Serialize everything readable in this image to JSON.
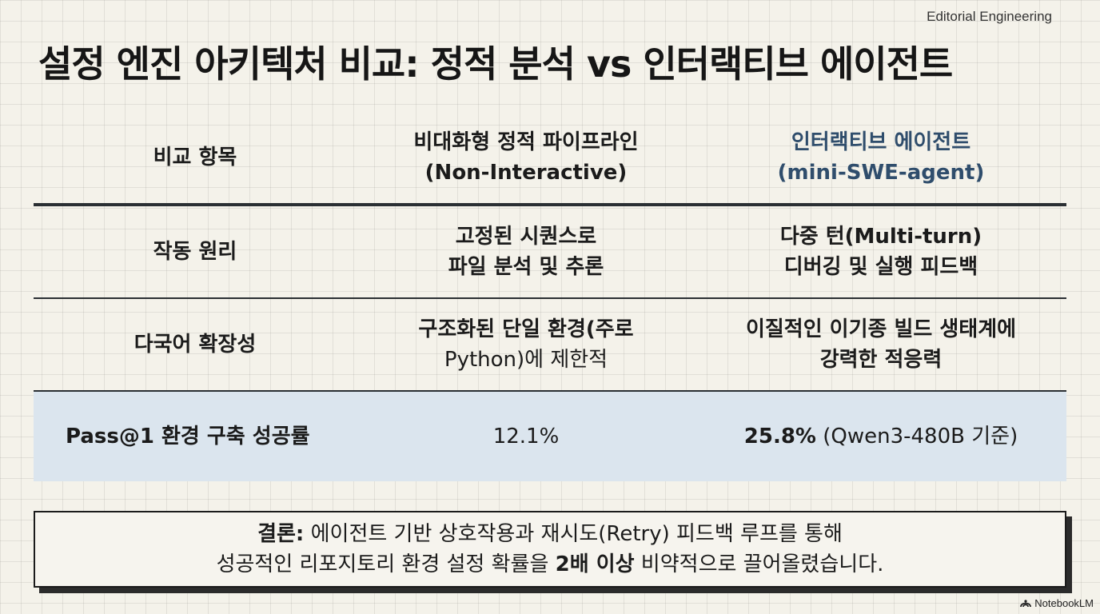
{
  "brand": "Editorial Engineering",
  "title": "설정 엔진 아키텍처 비교: 정적 분석 vs 인터랙티브 에이전트",
  "table": {
    "header": {
      "c1": "비교 항목",
      "c2_line1": "비대화형 정적 파이프라인",
      "c2_line2": "(Non-Interactive)",
      "c3_line1": "인터랙티브 에이전트",
      "c3_line2": "(mini-SWE-agent)"
    },
    "rows": [
      {
        "label": "작동 원리",
        "static_line1": "고정된 시퀀스로",
        "static_line2": "파일 분석 및 추론",
        "agent_line1": "다중 턴(Multi-turn)",
        "agent_line2": "디버깅 및 실행 피드백"
      },
      {
        "label": "다국어 확장성",
        "static_line1": "구조화된 단일 환경(주로",
        "static_line2": "Python)에 제한적",
        "agent_line1": "이질적인 이기종 빌드 생태계에",
        "agent_line2": "강력한 적응력"
      }
    ],
    "pass": {
      "label": "Pass@1 환경 구축 성공률",
      "static_value": "12.1%",
      "agent_value": "25.8%",
      "agent_note": " (Qwen3-480B 기준)"
    }
  },
  "conclusion": {
    "lead": "결론:",
    "line1_rest": " 에이전트 기반 상호작용과 재시도(Retry) 피드백 루프를 통해",
    "line2_a": "성공적인 리포지토리 환경 설정 확률을 ",
    "line2_bold": "2배 이상",
    "line2_b": " 비약적으로 끌어올렸습니다."
  },
  "footer": {
    "logo_icon": "notebooklm-icon",
    "label": "NotebookLM"
  },
  "colors": {
    "agent_header": "#2f4d6c",
    "highlight_row": "#dbe5ee"
  }
}
